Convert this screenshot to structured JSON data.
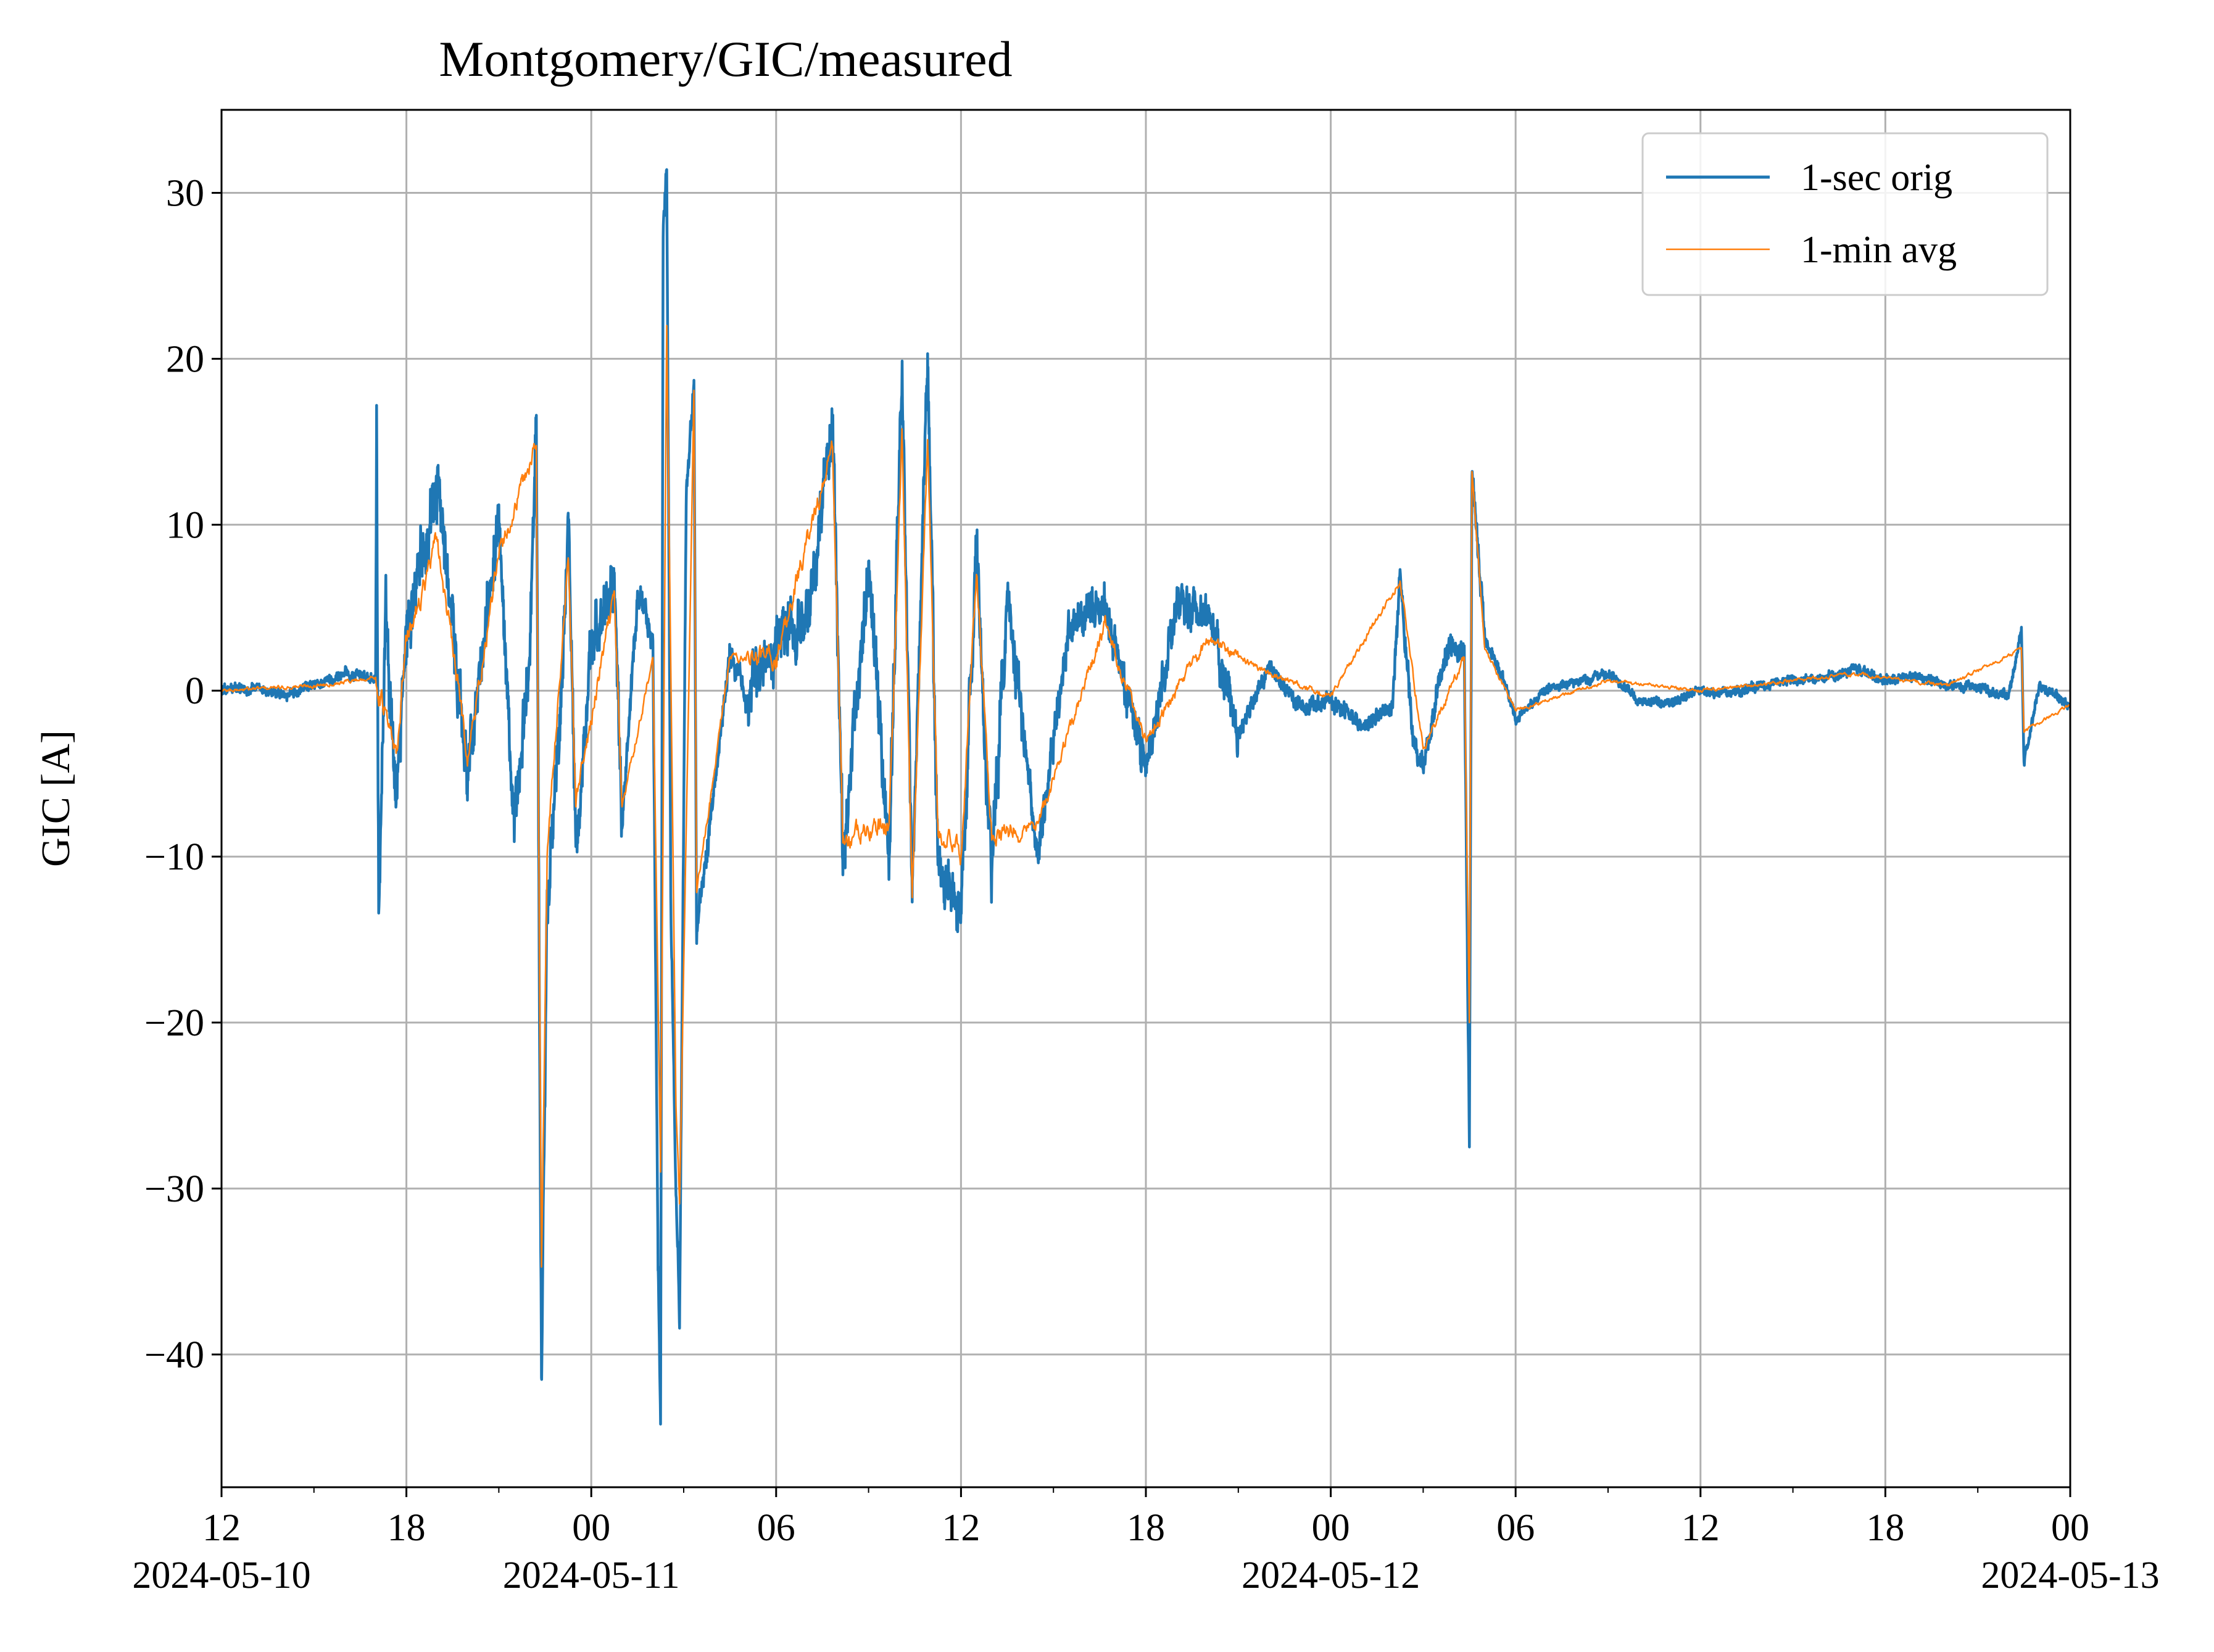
{
  "chart_data": {
    "type": "line",
    "title": "Montgomery/GIC/measured",
    "xlabel": "",
    "ylabel": "GIC [A]",
    "x_range": [
      "2024-05-10T12:00",
      "2024-05-13T00:00"
    ],
    "xlim_hours": [
      0,
      60
    ],
    "ylim": [
      -48,
      35
    ],
    "yticks": [
      -40,
      -30,
      -20,
      -10,
      0,
      10,
      20,
      30
    ],
    "ytick_labels": [
      "−40",
      "−30",
      "−20",
      "−10",
      "0",
      "10",
      "20",
      "30"
    ],
    "xticks_major": [
      {
        "time": "2024-05-10T12:00",
        "label": "12",
        "date": "2024-05-10"
      },
      {
        "time": "2024-05-10T18:00",
        "label": "18",
        "date": ""
      },
      {
        "time": "2024-05-11T00:00",
        "label": "00",
        "date": "2024-05-11"
      },
      {
        "time": "2024-05-11T06:00",
        "label": "06",
        "date": ""
      },
      {
        "time": "2024-05-11T12:00",
        "label": "12",
        "date": ""
      },
      {
        "time": "2024-05-11T18:00",
        "label": "18",
        "date": ""
      },
      {
        "time": "2024-05-12T00:00",
        "label": "00",
        "date": "2024-05-12"
      },
      {
        "time": "2024-05-12T06:00",
        "label": "06",
        "date": ""
      },
      {
        "time": "2024-05-12T12:00",
        "label": "12",
        "date": ""
      },
      {
        "time": "2024-05-12T18:00",
        "label": "18",
        "date": ""
      },
      {
        "time": "2024-05-13T00:00",
        "label": "00",
        "date": "2024-05-13"
      }
    ],
    "xticks_minor_every_hours": 3,
    "grid": true,
    "legend_position": "top-right",
    "series": [
      {
        "name": "1-sec orig",
        "color": "#1f77b4",
        "style": "spiky",
        "anchors": [
          [
            "2024-05-10T12:00",
            0
          ],
          [
            "2024-05-10T13:00",
            0.2
          ],
          [
            "2024-05-10T14:00",
            -0.3
          ],
          [
            "2024-05-10T15:00",
            0.3
          ],
          [
            "2024-05-10T16:00",
            1
          ],
          [
            "2024-05-10T17:00",
            0.8
          ],
          [
            "2024-05-10T17:02",
            16.2
          ],
          [
            "2024-05-10T17:06",
            -13.4
          ],
          [
            "2024-05-10T17:20",
            5.8
          ],
          [
            "2024-05-10T17:40",
            -6.4
          ],
          [
            "2024-05-10T18:00",
            3.4
          ],
          [
            "2024-05-10T19:00",
            12.7
          ],
          [
            "2024-05-10T20:00",
            -5.4
          ],
          [
            "2024-05-10T21:00",
            11.2
          ],
          [
            "2024-05-10T21:30",
            -9.1
          ],
          [
            "2024-05-10T22:00",
            2
          ],
          [
            "2024-05-10T22:13",
            16.3
          ],
          [
            "2024-05-10T22:23",
            -41.5
          ],
          [
            "2024-05-10T22:34",
            -12.5
          ],
          [
            "2024-05-10T23:00",
            -2
          ],
          [
            "2024-05-10T23:15",
            10.7
          ],
          [
            "2024-05-10T23:30",
            -9.4
          ],
          [
            "2024-05-11T00:00",
            2
          ],
          [
            "2024-05-11T00:45",
            7.1
          ],
          [
            "2024-05-11T01:00",
            -8.3
          ],
          [
            "2024-05-11T01:30",
            6
          ],
          [
            "2024-05-11T02:00",
            3
          ],
          [
            "2024-05-11T02:10",
            -34.1
          ],
          [
            "2024-05-11T02:15",
            -44.2
          ],
          [
            "2024-05-11T02:20",
            27.5
          ],
          [
            "2024-05-11T02:27",
            31.4
          ],
          [
            "2024-05-11T02:35",
            -13
          ],
          [
            "2024-05-11T02:45",
            -30.4
          ],
          [
            "2024-05-11T02:52",
            -38
          ],
          [
            "2024-05-11T03:05",
            12
          ],
          [
            "2024-05-11T03:20",
            18.5
          ],
          [
            "2024-05-11T03:25",
            -14.4
          ],
          [
            "2024-05-11T03:50",
            -8.5
          ],
          [
            "2024-05-11T04:30",
            2.5
          ],
          [
            "2024-05-11T05:00",
            -0.5
          ],
          [
            "2024-05-11T06:00",
            3
          ],
          [
            "2024-05-11T07:00",
            4
          ],
          [
            "2024-05-11T07:50",
            16.4
          ],
          [
            "2024-05-11T08:10",
            -10.5
          ],
          [
            "2024-05-11T09:00",
            7.8
          ],
          [
            "2024-05-11T09:40",
            -10.2
          ],
          [
            "2024-05-11T10:05",
            19.2
          ],
          [
            "2024-05-11T10:25",
            -12.1
          ],
          [
            "2024-05-11T10:55",
            19.6
          ],
          [
            "2024-05-11T11:15",
            -10.5
          ],
          [
            "2024-05-11T12:00",
            -13.3
          ],
          [
            "2024-05-11T12:30",
            8.6
          ],
          [
            "2024-05-11T13:00",
            -11
          ],
          [
            "2024-05-11T13:30",
            6
          ],
          [
            "2024-05-11T14:30",
            -10.1
          ],
          [
            "2024-05-11T15:30",
            4
          ],
          [
            "2024-05-11T16:40",
            5
          ],
          [
            "2024-05-11T18:00",
            -4.6
          ],
          [
            "2024-05-11T19:00",
            5
          ],
          [
            "2024-05-11T20:00",
            4.8
          ],
          [
            "2024-05-11T21:00",
            -2.5
          ],
          [
            "2024-05-11T22:00",
            1.5
          ],
          [
            "2024-05-11T23:00",
            -1
          ],
          [
            "2024-05-12T00:00",
            -0.5
          ],
          [
            "2024-05-12T01:00",
            -2.2
          ],
          [
            "2024-05-12T02:00",
            -1
          ],
          [
            "2024-05-12T02:15",
            7.3
          ],
          [
            "2024-05-12T02:40",
            -3
          ],
          [
            "2024-05-12T03:00",
            -4.7
          ],
          [
            "2024-05-12T03:45",
            2.5
          ],
          [
            "2024-05-12T04:20",
            2.4
          ],
          [
            "2024-05-12T04:30",
            -27.5
          ],
          [
            "2024-05-12T04:35",
            13.7
          ],
          [
            "2024-05-12T05:00",
            3
          ],
          [
            "2024-05-12T05:40",
            0.3
          ],
          [
            "2024-05-12T06:00",
            -1.8
          ],
          [
            "2024-05-12T07:00",
            0.2
          ],
          [
            "2024-05-12T08:00",
            0.5
          ],
          [
            "2024-05-12T09:00",
            1
          ],
          [
            "2024-05-12T10:00",
            -0.5
          ],
          [
            "2024-05-12T11:00",
            -0.8
          ],
          [
            "2024-05-12T12:00",
            0
          ],
          [
            "2024-05-12T13:00",
            -0.1
          ],
          [
            "2024-05-12T14:00",
            0.3
          ],
          [
            "2024-05-12T15:00",
            0.6
          ],
          [
            "2024-05-12T16:00",
            0.8
          ],
          [
            "2024-05-12T17:00",
            1.3
          ],
          [
            "2024-05-12T18:00",
            0.6
          ],
          [
            "2024-05-12T19:00",
            0.9
          ],
          [
            "2024-05-12T20:00",
            0.3
          ],
          [
            "2024-05-12T21:00",
            0.2
          ],
          [
            "2024-05-12T22:00",
            -0.3
          ],
          [
            "2024-05-12T22:25",
            3.8
          ],
          [
            "2024-05-12T22:30",
            -4.3
          ],
          [
            "2024-05-12T23:00",
            0.4
          ],
          [
            "2024-05-13T00:00",
            -1
          ]
        ]
      },
      {
        "name": "1-min avg",
        "color": "#ff7f0e",
        "style": "smoothed",
        "anchors": [
          [
            "2024-05-10T12:00",
            0
          ],
          [
            "2024-05-10T15:00",
            0.3
          ],
          [
            "2024-05-10T17:00",
            0.8
          ],
          [
            "2024-05-10T17:40",
            -4
          ],
          [
            "2024-05-10T18:00",
            3
          ],
          [
            "2024-05-10T19:00",
            9
          ],
          [
            "2024-05-10T20:00",
            -4
          ],
          [
            "2024-05-10T21:00",
            8
          ],
          [
            "2024-05-10T22:13",
            15
          ],
          [
            "2024-05-10T22:23",
            -35
          ],
          [
            "2024-05-10T22:34",
            -10
          ],
          [
            "2024-05-10T23:15",
            8
          ],
          [
            "2024-05-10T23:30",
            -7
          ],
          [
            "2024-05-11T00:45",
            6
          ],
          [
            "2024-05-11T01:00",
            -7
          ],
          [
            "2024-05-11T02:00",
            2
          ],
          [
            "2024-05-11T02:15",
            -29
          ],
          [
            "2024-05-11T02:27",
            22
          ],
          [
            "2024-05-11T02:45",
            -25
          ],
          [
            "2024-05-11T02:52",
            -31
          ],
          [
            "2024-05-11T03:20",
            18
          ],
          [
            "2024-05-11T03:25",
            -12
          ],
          [
            "2024-05-11T03:50",
            -7
          ],
          [
            "2024-05-11T04:30",
            2
          ],
          [
            "2024-05-11T06:00",
            2
          ],
          [
            "2024-05-11T07:50",
            14.6
          ],
          [
            "2024-05-11T08:10",
            -9
          ],
          [
            "2024-05-11T09:40",
            -8
          ],
          [
            "2024-05-11T10:05",
            15.3
          ],
          [
            "2024-05-11T10:25",
            -12
          ],
          [
            "2024-05-11T10:55",
            15
          ],
          [
            "2024-05-11T11:15",
            -8
          ],
          [
            "2024-05-11T12:00",
            -10
          ],
          [
            "2024-05-11T12:30",
            7
          ],
          [
            "2024-05-11T13:00",
            -9
          ],
          [
            "2024-05-11T14:30",
            -8
          ],
          [
            "2024-05-11T16:40",
            4
          ],
          [
            "2024-05-11T18:00",
            -3
          ],
          [
            "2024-05-11T20:00",
            3
          ],
          [
            "2024-05-11T22:00",
            1
          ],
          [
            "2024-05-12T00:00",
            -0.3
          ],
          [
            "2024-05-12T02:15",
            6.6
          ],
          [
            "2024-05-12T03:00",
            -3.5
          ],
          [
            "2024-05-12T04:20",
            2
          ],
          [
            "2024-05-12T04:30",
            -20
          ],
          [
            "2024-05-12T04:35",
            13.4
          ],
          [
            "2024-05-12T05:00",
            2.5
          ],
          [
            "2024-05-12T06:00",
            -1.2
          ],
          [
            "2024-05-12T09:00",
            0.6
          ],
          [
            "2024-05-12T12:00",
            0
          ],
          [
            "2024-05-12T17:00",
            1
          ],
          [
            "2024-05-12T20:00",
            0.3
          ],
          [
            "2024-05-12T22:25",
            2.5
          ],
          [
            "2024-05-12T22:30",
            -2.5
          ],
          [
            "2024-05-13T00:00",
            -0.8
          ]
        ]
      }
    ]
  },
  "colors": {
    "grid": "#b0b0b0",
    "axes": "#000000",
    "legend_border": "#cccccc",
    "background": "#ffffff"
  }
}
